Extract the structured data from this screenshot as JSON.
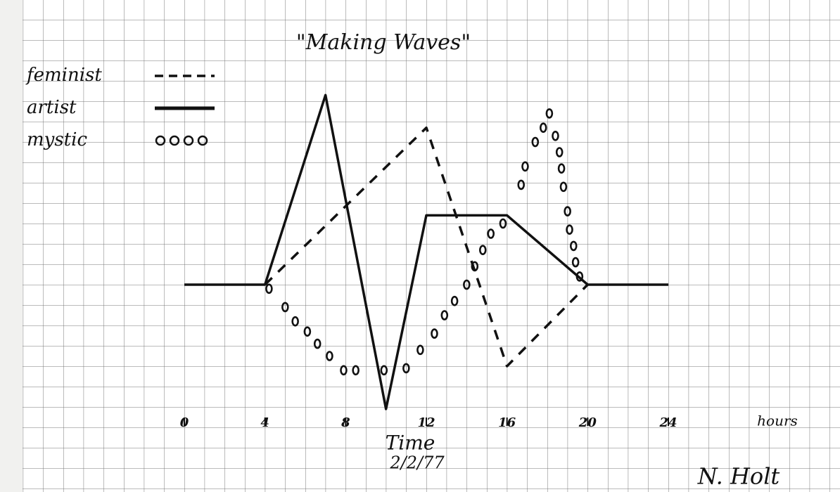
{
  "chart_data": {
    "type": "line",
    "title": "\"Making Waves\"",
    "x_label": "hours",
    "annotations": [
      "Time",
      "2/2/77",
      "N. Holt"
    ],
    "xlim": [
      0,
      24
    ],
    "xticks": [
      0,
      4,
      8,
      12,
      16,
      20,
      24
    ],
    "ylim": [
      -7,
      10
    ],
    "series": [
      {
        "name": "feminist",
        "color": "#111111",
        "style": "dashed",
        "x": [
          4,
          12,
          16,
          20
        ],
        "values": [
          0,
          7.7,
          -4,
          0
        ]
      },
      {
        "name": "artist",
        "color": "#111111",
        "style": "solid",
        "x": [
          0,
          4,
          7,
          10,
          12,
          16,
          20,
          24
        ],
        "values": [
          0,
          0,
          9.3,
          -6.1,
          3.4,
          3.4,
          0,
          0
        ]
      },
      {
        "name": "mystic",
        "color": "#111111",
        "style": "circles",
        "x": [
          4.2,
          5,
          5.5,
          6.1,
          6.6,
          7.2,
          7.9,
          8.5,
          9.9,
          11,
          11.7,
          12.4,
          12.9,
          13.4,
          14,
          14.4,
          14.8,
          15.2,
          15.8,
          16.7,
          16.9,
          17.4,
          17.8,
          18.1,
          18.4,
          18.6,
          18.7,
          18.8,
          19,
          19.1,
          19.3,
          19.4,
          19.6
        ],
        "values": [
          -0.2,
          -1.1,
          -1.8,
          -2.3,
          -2.9,
          -3.5,
          -4.2,
          -4.2,
          -4.2,
          -4.1,
          -3.2,
          -2.4,
          -1.5,
          -0.8,
          0,
          0.9,
          1.7,
          2.5,
          3,
          4.9,
          5.8,
          7,
          7.7,
          8.4,
          7.3,
          6.5,
          5.7,
          4.8,
          3.6,
          2.7,
          1.9,
          1.1,
          0.4
        ]
      }
    ]
  }
}
